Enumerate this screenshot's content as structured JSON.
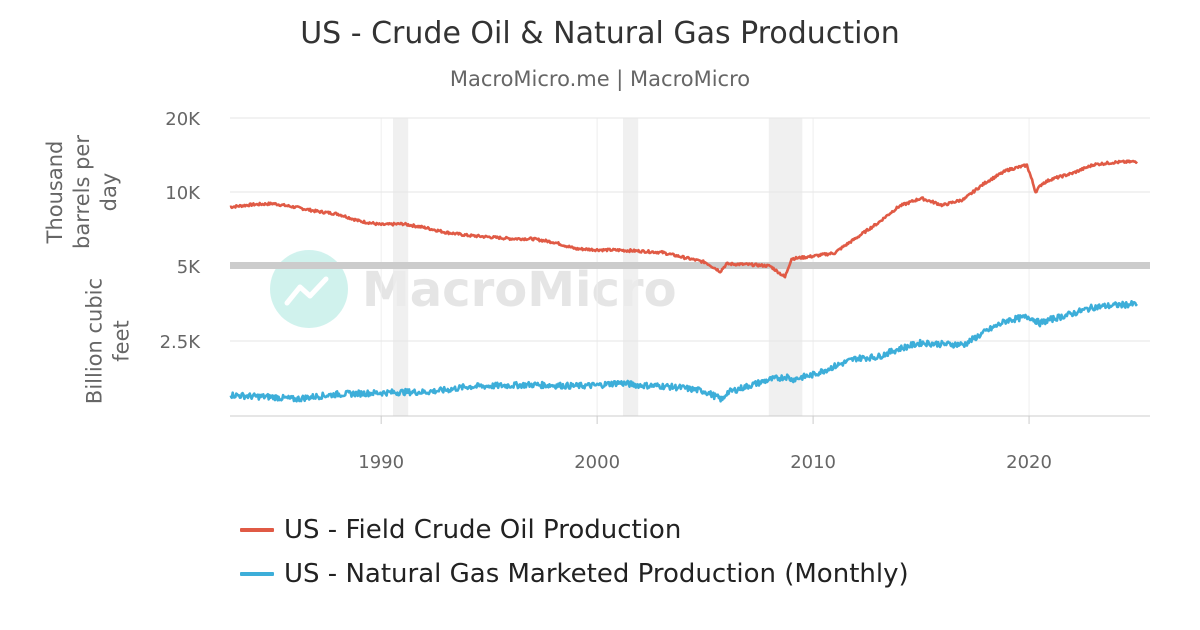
{
  "chart_data": {
    "type": "line",
    "title": "US - Crude Oil & Natural Gas Production",
    "subtitle": "MacroMicro.me | MacroMicro",
    "watermark": "MacroMicro",
    "x_ticks": [
      "1990",
      "2000",
      "2010",
      "2020"
    ],
    "xlim": [
      1983,
      2025.6
    ],
    "shaded_periods": [
      [
        1990.55,
        1991.25
      ],
      [
        2001.2,
        2001.9
      ],
      [
        2007.95,
        2009.5
      ]
    ],
    "panels": [
      {
        "id": "oil",
        "ylabel": "Thousand barrels per day",
        "ylabel_lines": [
          "Thousand",
          "barrels per",
          "day"
        ],
        "ylim": [
          5000,
          20000
        ],
        "scale": "log",
        "ticks": [
          {
            "value": 20000,
            "label": "20K"
          },
          {
            "value": 10000,
            "label": "10K"
          },
          {
            "value": 5000,
            "label": "5K"
          }
        ]
      },
      {
        "id": "gas",
        "ylabel": "Billion cubic feet",
        "ylabel_lines": [
          "Billion cubic",
          "feet"
        ],
        "ylim": [
          1250,
          5000
        ],
        "scale": "log",
        "ticks": [
          {
            "value": 2500,
            "label": "2.5K"
          }
        ]
      }
    ],
    "series": [
      {
        "name": "US - Field Crude Oil Production",
        "panel": "oil",
        "color": "#e05a45",
        "x": [
          1983.0,
          1984.0,
          1985.0,
          1986.0,
          1987.0,
          1988.0,
          1989.0,
          1990.0,
          1991.0,
          1992.0,
          1993.0,
          1994.0,
          1995.0,
          1996.0,
          1997.0,
          1998.0,
          1999.0,
          2000.0,
          2001.0,
          2002.0,
          2003.0,
          2004.0,
          2005.0,
          2005.7,
          2006.0,
          2007.0,
          2008.0,
          2008.7,
          2009.0,
          2010.0,
          2011.0,
          2012.0,
          2013.0,
          2014.0,
          2015.0,
          2016.0,
          2017.0,
          2018.0,
          2019.0,
          2019.9,
          2020.3,
          2020.6,
          2021.0,
          2022.0,
          2023.0,
          2024.0,
          2025.0
        ],
        "y": [
          8690,
          8880,
          8970,
          8680,
          8350,
          8140,
          7610,
          7360,
          7420,
          7170,
          6850,
          6660,
          6560,
          6460,
          6450,
          6250,
          5880,
          5820,
          5800,
          5750,
          5680,
          5420,
          5180,
          4750,
          5100,
          5070,
          5000,
          4500,
          5350,
          5480,
          5650,
          6500,
          7470,
          8760,
          9430,
          8830,
          9350,
          10950,
          12290,
          12850,
          10000,
          10800,
          11250,
          11910,
          12930,
          13210,
          13300
        ]
      },
      {
        "name": "US - Natural Gas Marketed Production (Monthly)",
        "panel": "gas",
        "color": "#3daed9",
        "x": [
          1983.0,
          1984.0,
          1985.0,
          1986.0,
          1987.0,
          1988.0,
          1989.0,
          1990.0,
          1991.0,
          1992.0,
          1993.0,
          1994.0,
          1995.0,
          1996.0,
          1997.0,
          1998.0,
          1999.0,
          2000.0,
          2001.0,
          2002.0,
          2003.0,
          2004.0,
          2005.0,
          2005.8,
          2006.0,
          2007.0,
          2008.0,
          2008.8,
          2009.0,
          2010.0,
          2011.0,
          2012.0,
          2013.0,
          2014.0,
          2015.0,
          2016.0,
          2017.0,
          2018.0,
          2019.0,
          2020.0,
          2020.5,
          2021.0,
          2022.0,
          2023.0,
          2024.0,
          2025.0
        ],
        "y": [
          1520,
          1500,
          1490,
          1460,
          1500,
          1530,
          1540,
          1550,
          1560,
          1560,
          1590,
          1640,
          1650,
          1660,
          1670,
          1660,
          1650,
          1660,
          1700,
          1660,
          1650,
          1620,
          1570,
          1450,
          1550,
          1650,
          1750,
          1800,
          1750,
          1830,
          1980,
          2130,
          2160,
          2330,
          2460,
          2430,
          2420,
          2730,
          3030,
          3130,
          2950,
          3050,
          3220,
          3420,
          3480,
          3520
        ]
      }
    ],
    "legend_position": "bottom-left"
  }
}
